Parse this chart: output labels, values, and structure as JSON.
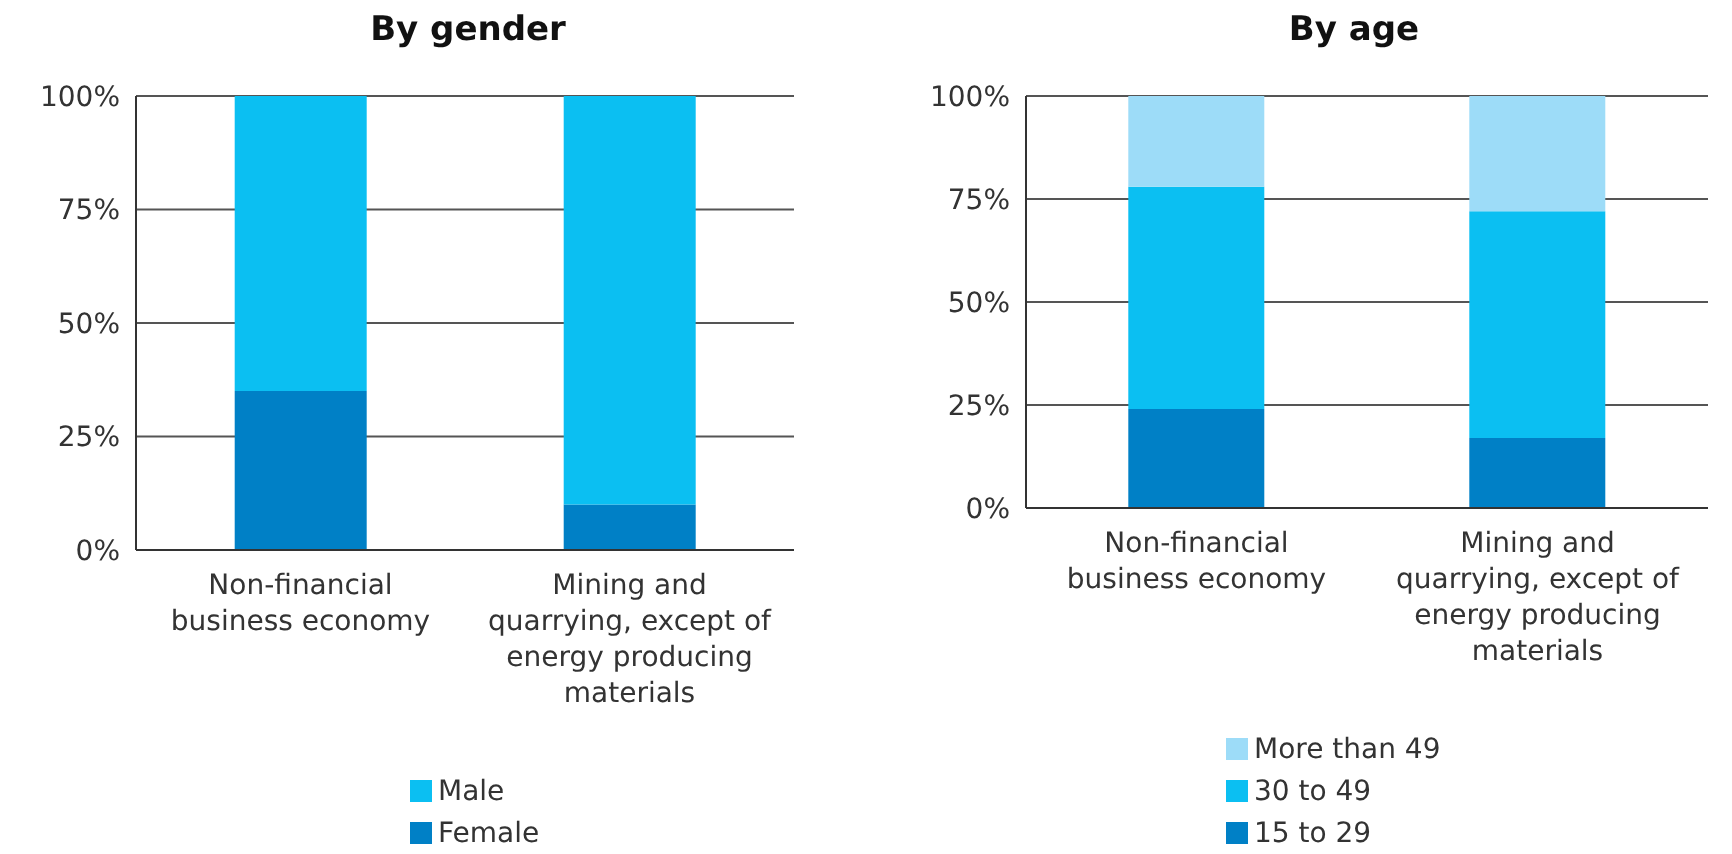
{
  "chart_data": [
    {
      "type": "bar",
      "title": "By gender",
      "categories": [
        "Non-financial business economy",
        "Mining and quarrying, except of energy producing materials"
      ],
      "stacked": true,
      "ylim": [
        0,
        100
      ],
      "yticks": [
        {
          "value": 0,
          "label": "0%"
        },
        {
          "value": 25,
          "label": "25%"
        },
        {
          "value": 50,
          "label": "50%"
        },
        {
          "value": 75,
          "label": "75%"
        },
        {
          "value": 100,
          "label": "100%"
        }
      ],
      "grid": "y",
      "legend": "bottom",
      "series": [
        {
          "name": "Female",
          "color": "#0080c6",
          "values": [
            35,
            10
          ]
        },
        {
          "name": "Male",
          "color": "#0bbff2",
          "values": [
            65,
            90
          ]
        }
      ]
    },
    {
      "type": "bar",
      "title": "By age",
      "categories": [
        "Non-financial business economy",
        "Mining and quarrying, except of energy producing materials"
      ],
      "stacked": true,
      "ylim": [
        0,
        100
      ],
      "yticks": [
        {
          "value": 0,
          "label": "0%"
        },
        {
          "value": 25,
          "label": "25%"
        },
        {
          "value": 50,
          "label": "50%"
        },
        {
          "value": 75,
          "label": "75%"
        },
        {
          "value": 100,
          "label": "100%"
        }
      ],
      "grid": "y",
      "legend": "bottom",
      "series": [
        {
          "name": "15 to 29",
          "color": "#0080c6",
          "values": [
            24,
            17
          ]
        },
        {
          "name": "30 to 49",
          "color": "#0bbff2",
          "values": [
            54,
            55
          ]
        },
        {
          "name": "More than 49",
          "color": "#9ddcf8",
          "values": [
            22,
            28
          ]
        }
      ]
    }
  ]
}
